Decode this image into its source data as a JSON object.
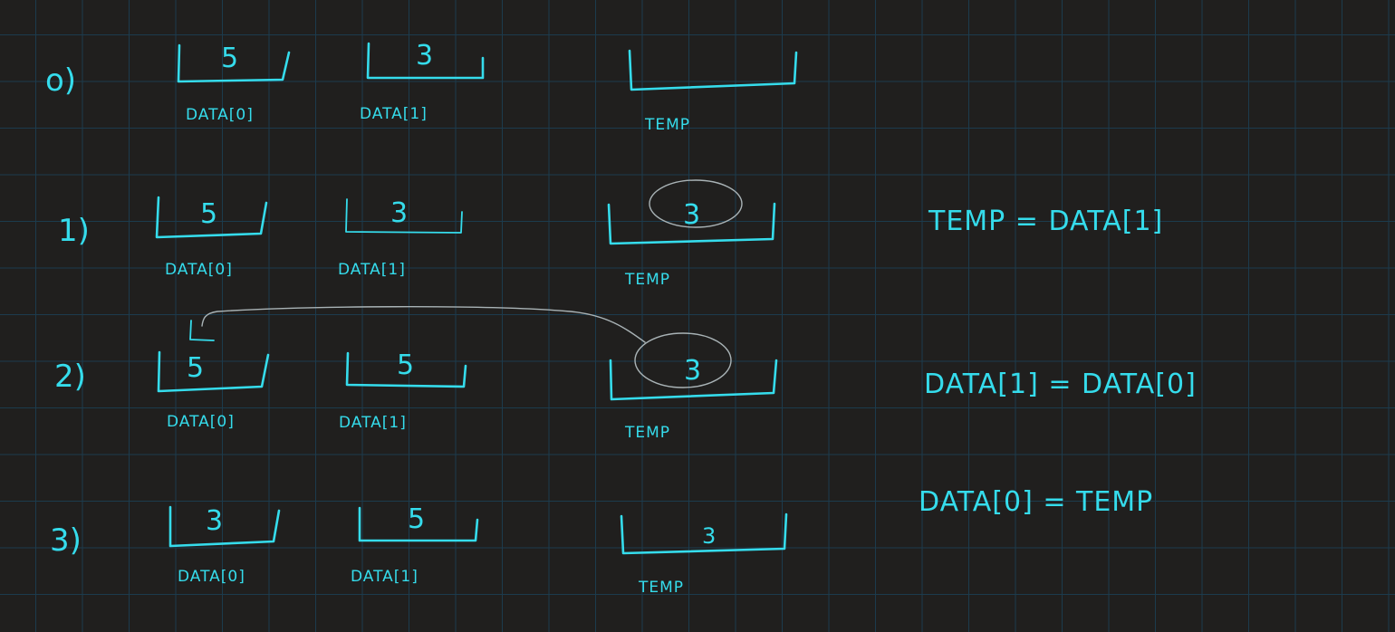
{
  "ink_color": "#35dcec",
  "background": "#201f1e",
  "grid_color": "#1c3b4d",
  "steps": [
    {
      "label": "o)",
      "boxes": [
        {
          "value": "5",
          "name": "DATA[0]"
        },
        {
          "value": "3",
          "name": "DATA[1]"
        },
        {
          "value": "",
          "name": "TEMP"
        }
      ]
    },
    {
      "label": "1)",
      "boxes": [
        {
          "value": "5",
          "name": "DATA[0]"
        },
        {
          "value": "3",
          "name": "DATA[1]"
        },
        {
          "value": "3",
          "name": "TEMP"
        }
      ],
      "equation": "TEMP = DATA[1]"
    },
    {
      "label": "2)",
      "boxes": [
        {
          "value": "5",
          "name": "DATA[0]"
        },
        {
          "value": "5",
          "name": "DATA[1]"
        },
        {
          "value": "3",
          "name": "TEMP"
        }
      ],
      "equation": "DATA[1] = DATA[0]"
    },
    {
      "label": "3)",
      "boxes": [
        {
          "value": "3",
          "name": "DATA[0]"
        },
        {
          "value": "5",
          "name": "DATA[1]"
        },
        {
          "value": "3",
          "name": "TEMP"
        }
      ],
      "equation": "DATA[0] = TEMP"
    }
  ]
}
